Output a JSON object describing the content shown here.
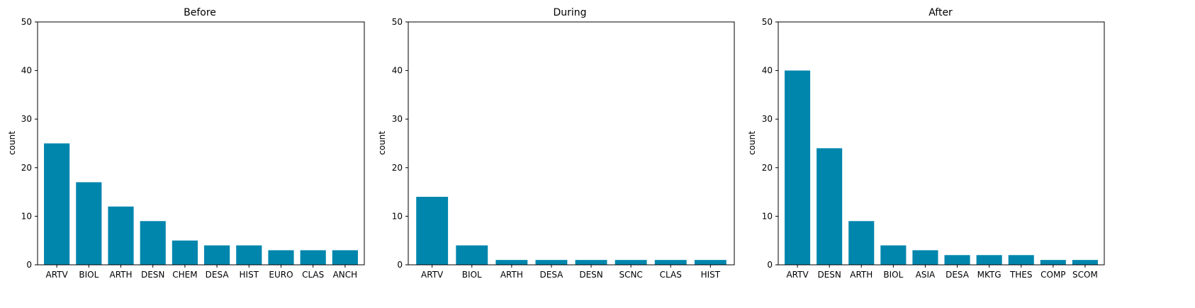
{
  "colors": {
    "bar": "#0086ad"
  },
  "chart_data": [
    {
      "type": "bar",
      "title": "Before",
      "xlabel": "",
      "ylabel": "count",
      "ylim": [
        0,
        50
      ],
      "yticks": [
        0,
        10,
        20,
        30,
        40,
        50
      ],
      "grid": false,
      "categories": [
        "ARTV",
        "BIOL",
        "ARTH",
        "DESN",
        "CHEM",
        "DESA",
        "HIST",
        "EURO",
        "CLAS",
        "ANCH"
      ],
      "values": [
        25,
        17,
        12,
        9,
        5,
        4,
        4,
        3,
        3,
        3
      ]
    },
    {
      "type": "bar",
      "title": "During",
      "xlabel": "",
      "ylabel": "count",
      "ylim": [
        0,
        50
      ],
      "yticks": [
        0,
        10,
        20,
        30,
        40,
        50
      ],
      "grid": false,
      "categories": [
        "ARTV",
        "BIOL",
        "ARTH",
        "DESA",
        "DESN",
        "SCNC",
        "CLAS",
        "HIST"
      ],
      "values": [
        14,
        4,
        1,
        1,
        1,
        1,
        1,
        1
      ]
    },
    {
      "type": "bar",
      "title": "After",
      "xlabel": "",
      "ylabel": "count",
      "ylim": [
        0,
        50
      ],
      "yticks": [
        0,
        10,
        20,
        30,
        40,
        50
      ],
      "grid": false,
      "categories": [
        "ARTV",
        "DESN",
        "ARTH",
        "BIOL",
        "ASIA",
        "DESA",
        "MKTG",
        "THES",
        "COMP",
        "SCOM"
      ],
      "values": [
        40,
        24,
        9,
        4,
        3,
        2,
        2,
        2,
        1,
        1
      ]
    }
  ]
}
